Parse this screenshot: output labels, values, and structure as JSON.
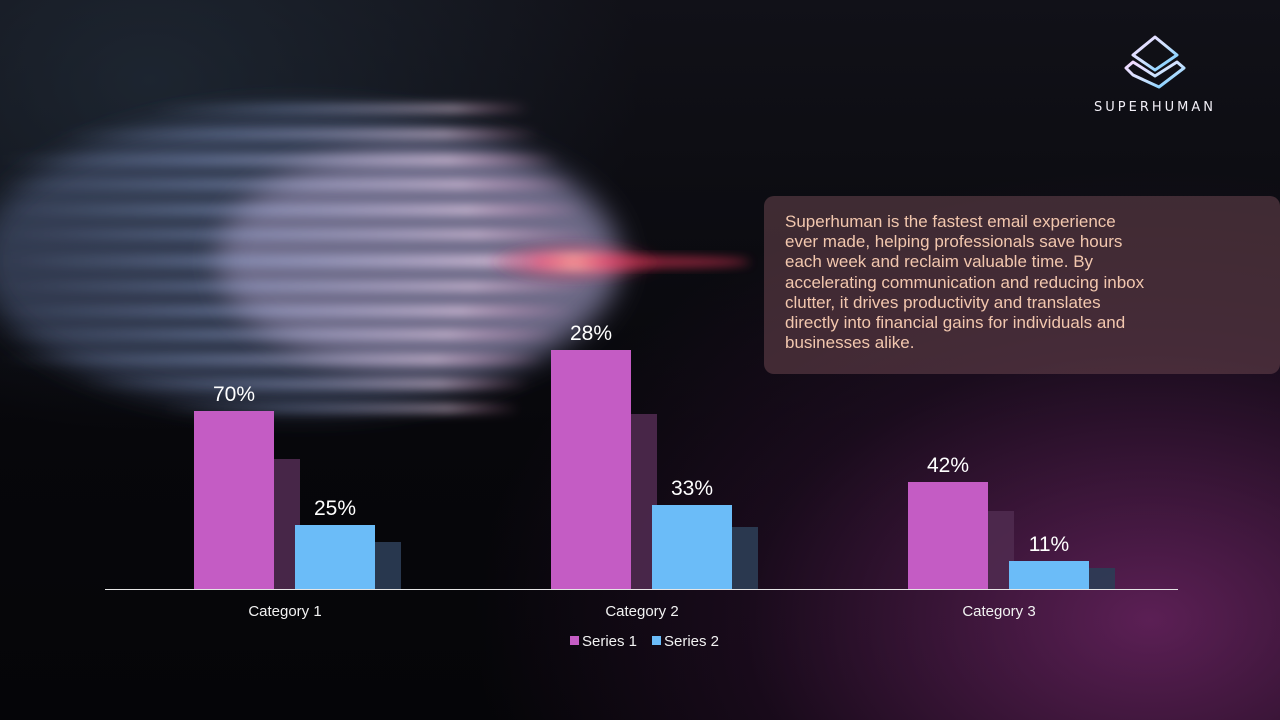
{
  "brand": {
    "name": "SUPERHUMAN",
    "logo_icon": "superhuman-logo-icon"
  },
  "description": "Superhuman is the fastest email experience ever made, helping professionals save hours each week and reclaim valuable time. By accelerating communication and reducing inbox clutter, it drives productivity and translates directly into financial gains for individuals and businesses alike.",
  "colors": {
    "series1": "#c45cc4",
    "series2": "#6bbcf8",
    "description_text": "#f2c7ae"
  },
  "chart_data": {
    "type": "bar",
    "categories": [
      "Category 1",
      "Category 2",
      "Category 3"
    ],
    "series": [
      {
        "name": "Series 1",
        "values": [
          70,
          28,
          42
        ],
        "labels": [
          "70%",
          "28%",
          "42%"
        ]
      },
      {
        "name": "Series 2",
        "values": [
          25,
          33,
          11
        ],
        "labels": [
          "25%",
          "33%",
          "11%"
        ]
      }
    ],
    "legend_position": "bottom",
    "grid": false,
    "style": "3d-bars-with-shadow"
  }
}
